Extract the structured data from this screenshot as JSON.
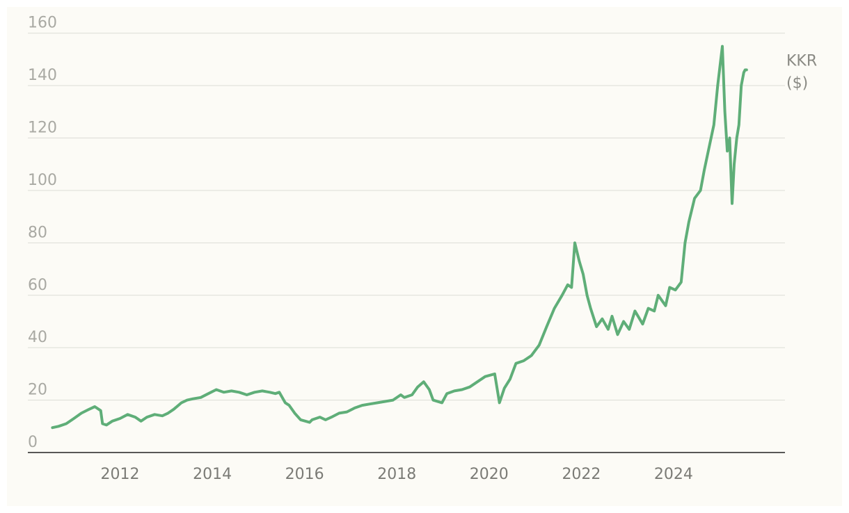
{
  "chart_data": {
    "type": "line",
    "title": "",
    "xlabel": "",
    "ylabel": "",
    "ylim": [
      0,
      170
    ],
    "xlim": [
      "2010-01-01",
      "2026-06-01"
    ],
    "grid": "horizontal",
    "yticks": [
      "0",
      "20",
      "40",
      "60",
      "80",
      "100",
      "120",
      "140",
      "160"
    ],
    "xticks": [
      "2012",
      "2014",
      "2016",
      "2018",
      "2020",
      "2022",
      "2024"
    ],
    "series_label": [
      "KKR",
      "($)"
    ],
    "colors": {
      "line": "#5fae78",
      "grid": "#dcdcd6",
      "axis": "#222222",
      "background": "#fcfbf6"
    },
    "series": [
      {
        "x": [
          "2010-07-15",
          "2010-09-01",
          "2010-11-01",
          "2011-01-01",
          "2011-03-01",
          "2011-05-01",
          "2011-06-15",
          "2011-08-01",
          "2011-08-15",
          "2011-09-15",
          "2011-11-01",
          "2012-01-01",
          "2012-03-01",
          "2012-05-01",
          "2012-06-15",
          "2012-08-01",
          "2012-10-01",
          "2012-12-01",
          "2013-01-15",
          "2013-03-01",
          "2013-05-01",
          "2013-06-15",
          "2013-08-01",
          "2013-10-01",
          "2013-12-01",
          "2014-02-01",
          "2014-04-01",
          "2014-06-01",
          "2014-08-01",
          "2014-10-01",
          "2014-12-01",
          "2015-02-01",
          "2015-04-01",
          "2015-05-15",
          "2015-06-15",
          "2015-08-01",
          "2015-09-01",
          "2015-10-15",
          "2015-12-01",
          "2016-02-10",
          "2016-03-01",
          "2016-05-01",
          "2016-06-15",
          "2016-08-01",
          "2016-10-01",
          "2016-12-01",
          "2017-02-01",
          "2017-04-01",
          "2017-06-01",
          "2017-08-01",
          "2017-10-01",
          "2017-12-01",
          "2018-02-01",
          "2018-03-01",
          "2018-05-01",
          "2018-06-15",
          "2018-08-01",
          "2018-09-15",
          "2018-10-15",
          "2018-12-24",
          "2019-02-01",
          "2019-04-01",
          "2019-06-01",
          "2019-08-01",
          "2019-10-01",
          "2019-12-01",
          "2020-02-15",
          "2020-03-23",
          "2020-05-01",
          "2020-06-15",
          "2020-08-01",
          "2020-10-01",
          "2020-12-01",
          "2021-02-01",
          "2021-04-01",
          "2021-06-01",
          "2021-08-01",
          "2021-09-15",
          "2021-10-15",
          "2021-11-10",
          "2021-12-15",
          "2022-01-15",
          "2022-02-15",
          "2022-03-15",
          "2022-05-01",
          "2022-06-15",
          "2022-08-01",
          "2022-09-01",
          "2022-10-15",
          "2022-12-01",
          "2023-01-15",
          "2023-03-01",
          "2023-05-01",
          "2023-06-15",
          "2023-08-01",
          "2023-09-01",
          "2023-10-30",
          "2023-12-01",
          "2024-01-15",
          "2024-03-01",
          "2024-04-01",
          "2024-05-01",
          "2024-06-15",
          "2024-08-01",
          "2024-09-01",
          "2024-10-15",
          "2024-11-15",
          "2024-12-15",
          "2025-01-21",
          "2025-02-10",
          "2025-03-01",
          "2025-03-20",
          "2025-04-08",
          "2025-04-25",
          "2025-05-15",
          "2025-06-01",
          "2025-06-20",
          "2025-07-10",
          "2025-07-20",
          "2025-08-01"
        ],
        "y": [
          9.5,
          10,
          11,
          13,
          15,
          16.5,
          17.5,
          16,
          11,
          10.5,
          12,
          13,
          14.5,
          13.5,
          12,
          13.5,
          14.5,
          14,
          15,
          16.5,
          19,
          20,
          20.5,
          21,
          22.5,
          24,
          23,
          23.5,
          23,
          22,
          23,
          23.5,
          23,
          22.5,
          23,
          19,
          18,
          15,
          12.5,
          11.5,
          12.5,
          13.5,
          12.5,
          13.5,
          15,
          15.5,
          17,
          18,
          18.5,
          19,
          19.5,
          20,
          22,
          21,
          22,
          25,
          27,
          24,
          20,
          19,
          22.5,
          23.5,
          24,
          25,
          27,
          29,
          30,
          19,
          24.5,
          28,
          34,
          35,
          37,
          41,
          48,
          55,
          60,
          64,
          63,
          80,
          73,
          68,
          60,
          55,
          48,
          51,
          47,
          52,
          45,
          50,
          47,
          54,
          49,
          55,
          54,
          60,
          56,
          63,
          62,
          65,
          80,
          88,
          97,
          100,
          108,
          118,
          125,
          140,
          155,
          130,
          115,
          120,
          95,
          110,
          120,
          125,
          140,
          145,
          146,
          146
        ]
      }
    ]
  }
}
